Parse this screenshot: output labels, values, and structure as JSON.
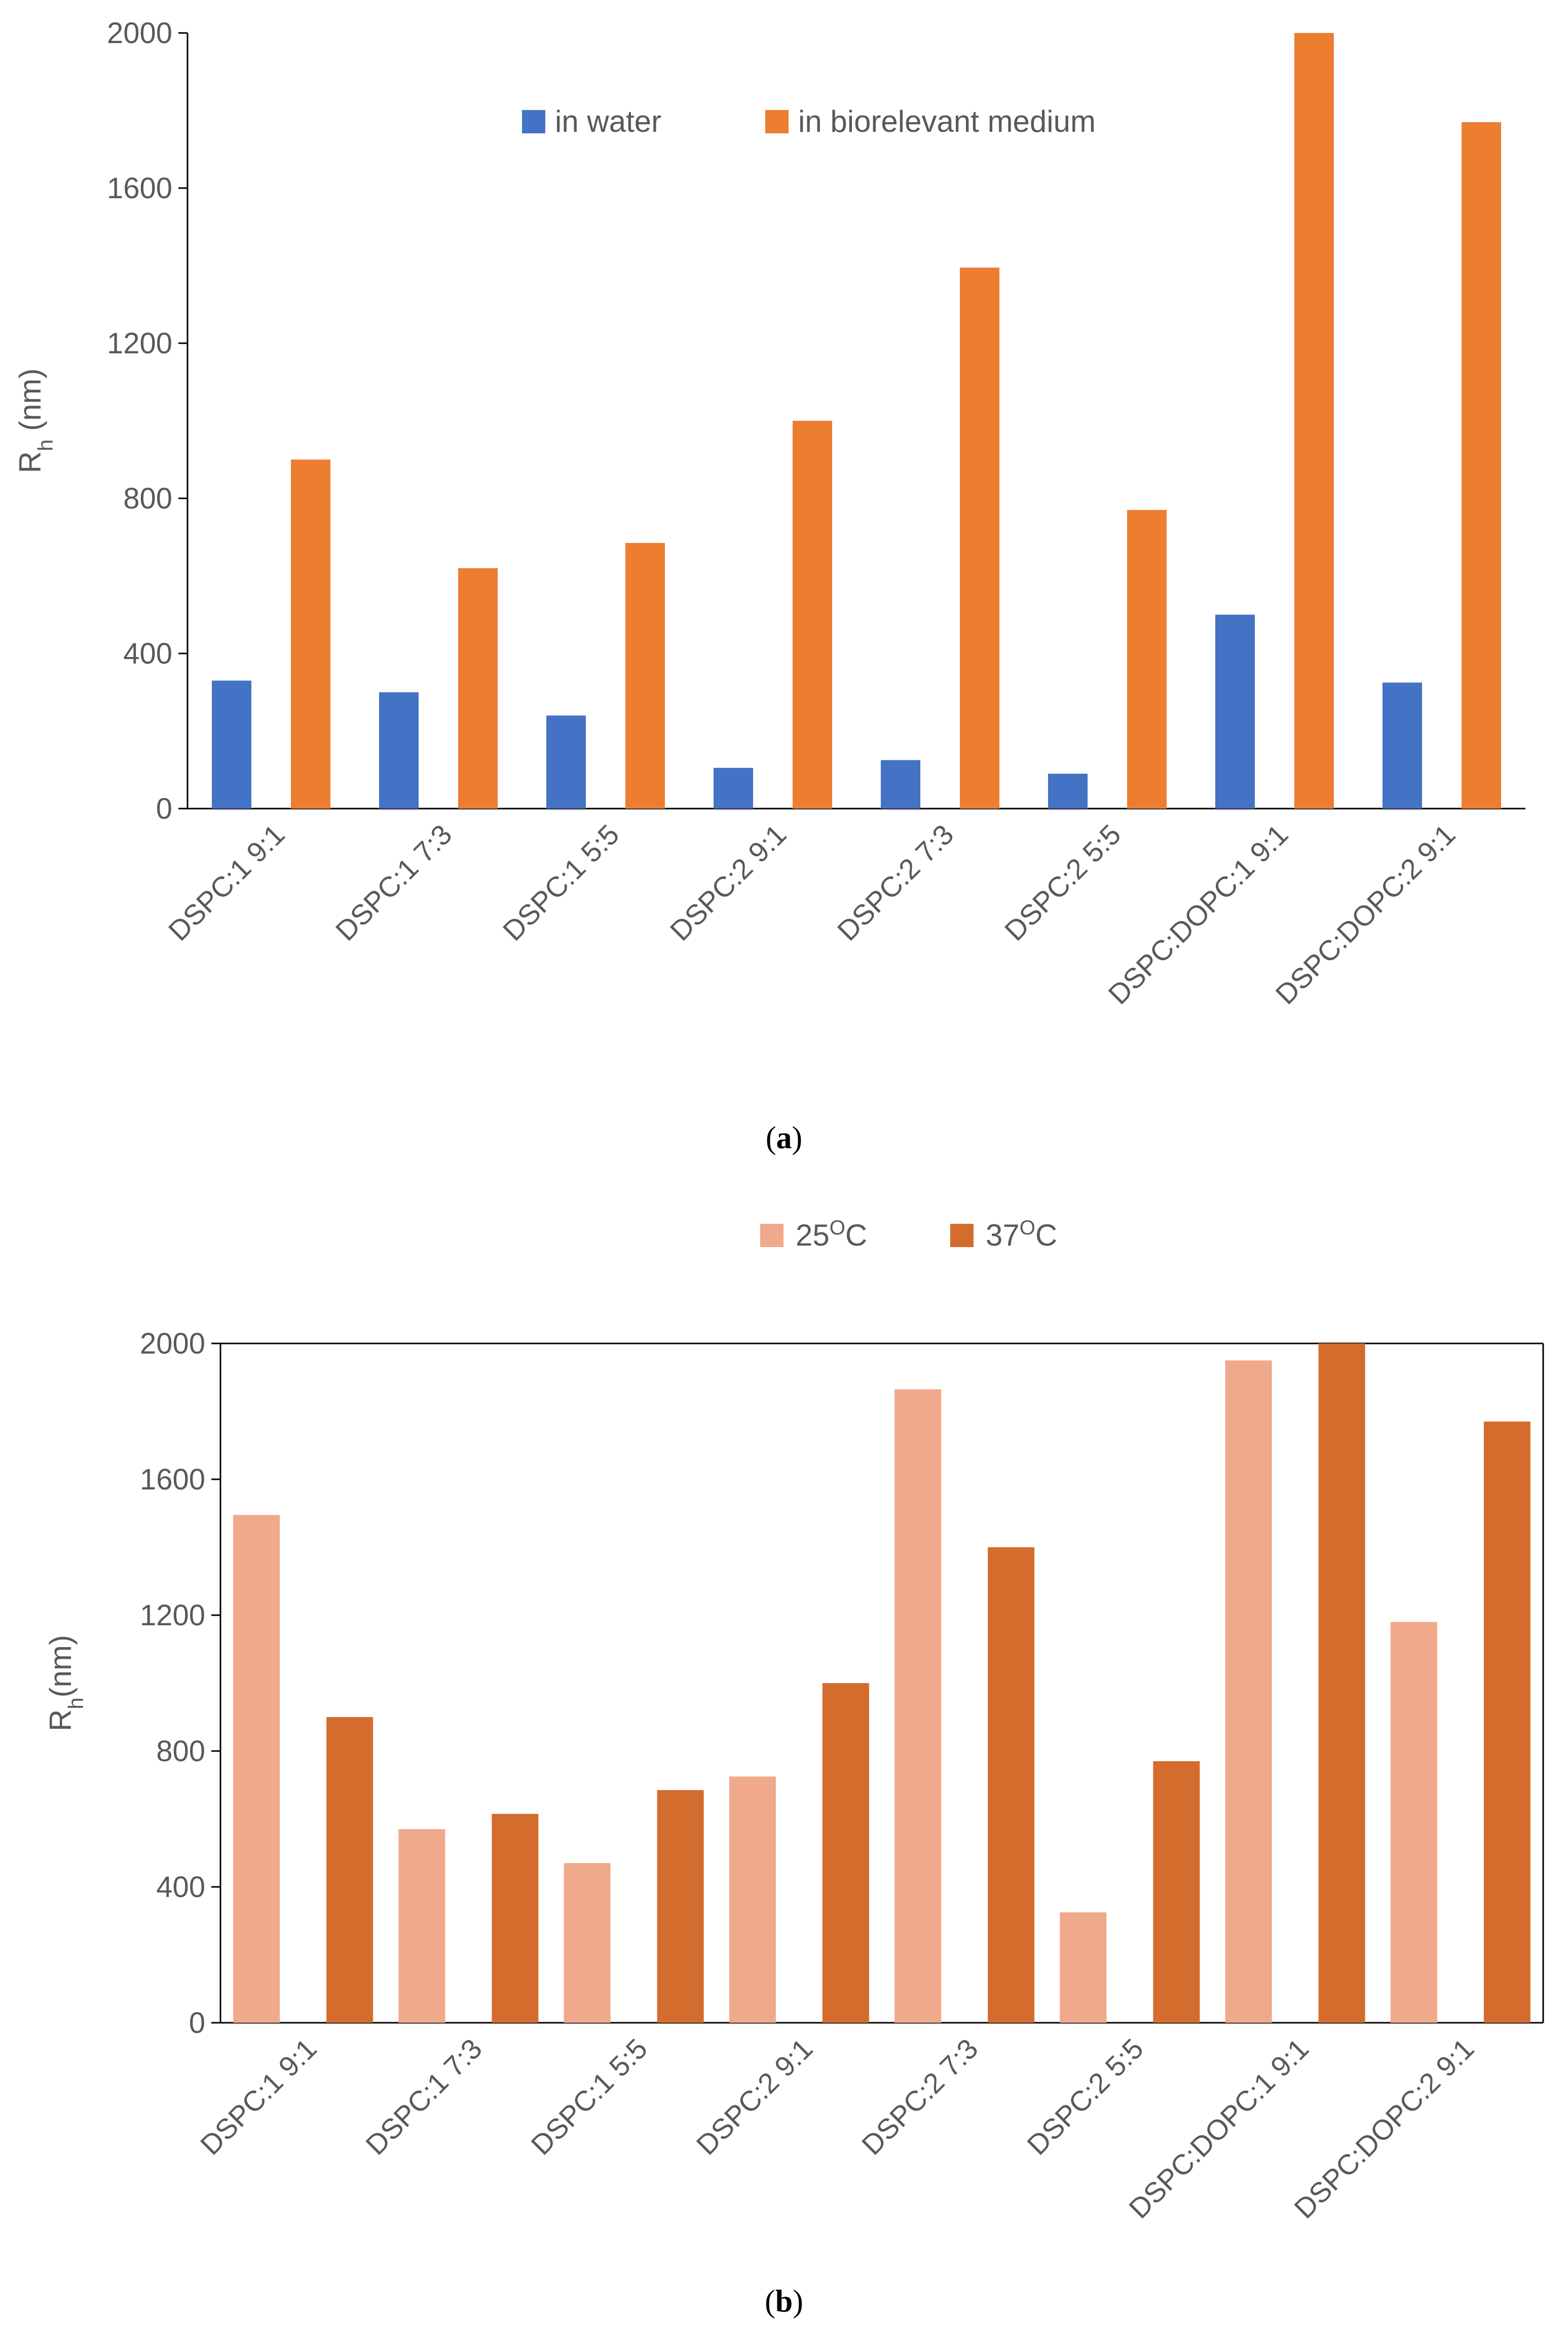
{
  "chart_data": [
    {
      "type": "bar",
      "panel": "a",
      "caption": "(a)",
      "categories": [
        "DSPC:1 9:1",
        "DSPC:1 7:3",
        "DSPC:1 5:5",
        "DSPC:2 9:1",
        "DSPC:2 7:3",
        "DSPC:2 5:5",
        "DSPC:DOPC:1 9:1",
        "DSPC:DOPC:2 9:1"
      ],
      "series": [
        {
          "name": "in water",
          "color": "#4472c4",
          "values": [
            330,
            300,
            240,
            105,
            125,
            90,
            500,
            325
          ]
        },
        {
          "name": "in biorelevant medium",
          "color": "#ed7d31",
          "values": [
            900,
            620,
            685,
            1000,
            1395,
            770,
            2000,
            1770
          ]
        }
      ],
      "ylabel_main": "R",
      "ylabel_sub": "h",
      "ylabel_rest": " (nm)",
      "ylim": [
        0,
        2000
      ],
      "yticks": [
        0,
        400,
        800,
        1200,
        1600,
        2000
      ],
      "legend_position": "top-center-inside"
    },
    {
      "type": "bar",
      "panel": "b",
      "caption": "(b)",
      "categories": [
        "DSPC:1 9:1",
        "DSPC:1 7:3",
        "DSPC:1 5:5",
        "DSPC:2 9:1",
        "DSPC:2 7:3",
        "DSPC:2 5:5",
        "DSPC:DOPC:1 9:1",
        "DSPC:DOPC:2 9:1"
      ],
      "series": [
        {
          "name": "25",
          "name_sup": "O",
          "name_unit": "C",
          "color": "#f0a98b",
          "values": [
            1495,
            570,
            470,
            725,
            1865,
            325,
            1950,
            1180
          ]
        },
        {
          "name": "37",
          "name_sup": "O",
          "name_unit": "C",
          "color": "#d46c2e",
          "values": [
            900,
            615,
            685,
            1000,
            1400,
            770,
            2000,
            1770
          ]
        }
      ],
      "ylabel_main": "R",
      "ylabel_sub": "h",
      "ylabel_rest": "(nm)",
      "ylim": [
        0,
        2000
      ],
      "yticks": [
        0,
        400,
        800,
        1200,
        1600,
        2000
      ],
      "legend_position": "top-center-outside"
    }
  ]
}
